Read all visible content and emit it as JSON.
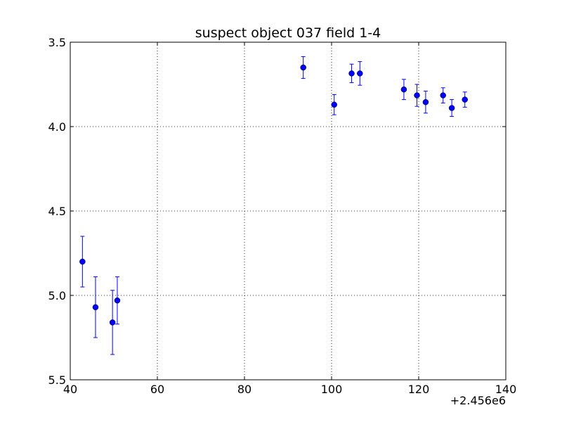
{
  "chart_data": {
    "type": "scatter",
    "title": "suspect object 037 field 1-4",
    "xlabel": "",
    "ylabel": "",
    "x_offset_label": "+2.456e6",
    "xlim": [
      40,
      140
    ],
    "ylim": [
      5.5,
      3.5
    ],
    "y_inverted": true,
    "grid": true,
    "marker_color": "#0000ff",
    "x_ticks": [
      {
        "value": 40,
        "label": "40"
      },
      {
        "value": 60,
        "label": "60"
      },
      {
        "value": 80,
        "label": "80"
      },
      {
        "value": 100,
        "label": "100"
      },
      {
        "value": 120,
        "label": "120"
      },
      {
        "value": 140,
        "label": "140"
      }
    ],
    "y_ticks": [
      {
        "value": 3.5,
        "label": "3.5"
      },
      {
        "value": 4.0,
        "label": "4.0"
      },
      {
        "value": 4.5,
        "label": "4.5"
      },
      {
        "value": 5.0,
        "label": "5.0"
      },
      {
        "value": 5.5,
        "label": "5.5"
      }
    ],
    "points": [
      {
        "x": 42.8,
        "y": 4.8,
        "err": 0.15
      },
      {
        "x": 45.8,
        "y": 5.07,
        "err": 0.18
      },
      {
        "x": 49.7,
        "y": 5.16,
        "err": 0.19
      },
      {
        "x": 50.8,
        "y": 5.03,
        "err": 0.14
      },
      {
        "x": 93.5,
        "y": 3.65,
        "err": 0.065
      },
      {
        "x": 100.6,
        "y": 3.87,
        "err": 0.06
      },
      {
        "x": 104.6,
        "y": 3.685,
        "err": 0.055
      },
      {
        "x": 106.5,
        "y": 3.685,
        "err": 0.07
      },
      {
        "x": 116.6,
        "y": 3.78,
        "err": 0.06
      },
      {
        "x": 119.6,
        "y": 3.815,
        "err": 0.065
      },
      {
        "x": 121.6,
        "y": 3.855,
        "err": 0.065
      },
      {
        "x": 125.6,
        "y": 3.815,
        "err": 0.045
      },
      {
        "x": 127.6,
        "y": 3.89,
        "err": 0.05
      },
      {
        "x": 130.6,
        "y": 3.84,
        "err": 0.045
      }
    ]
  }
}
